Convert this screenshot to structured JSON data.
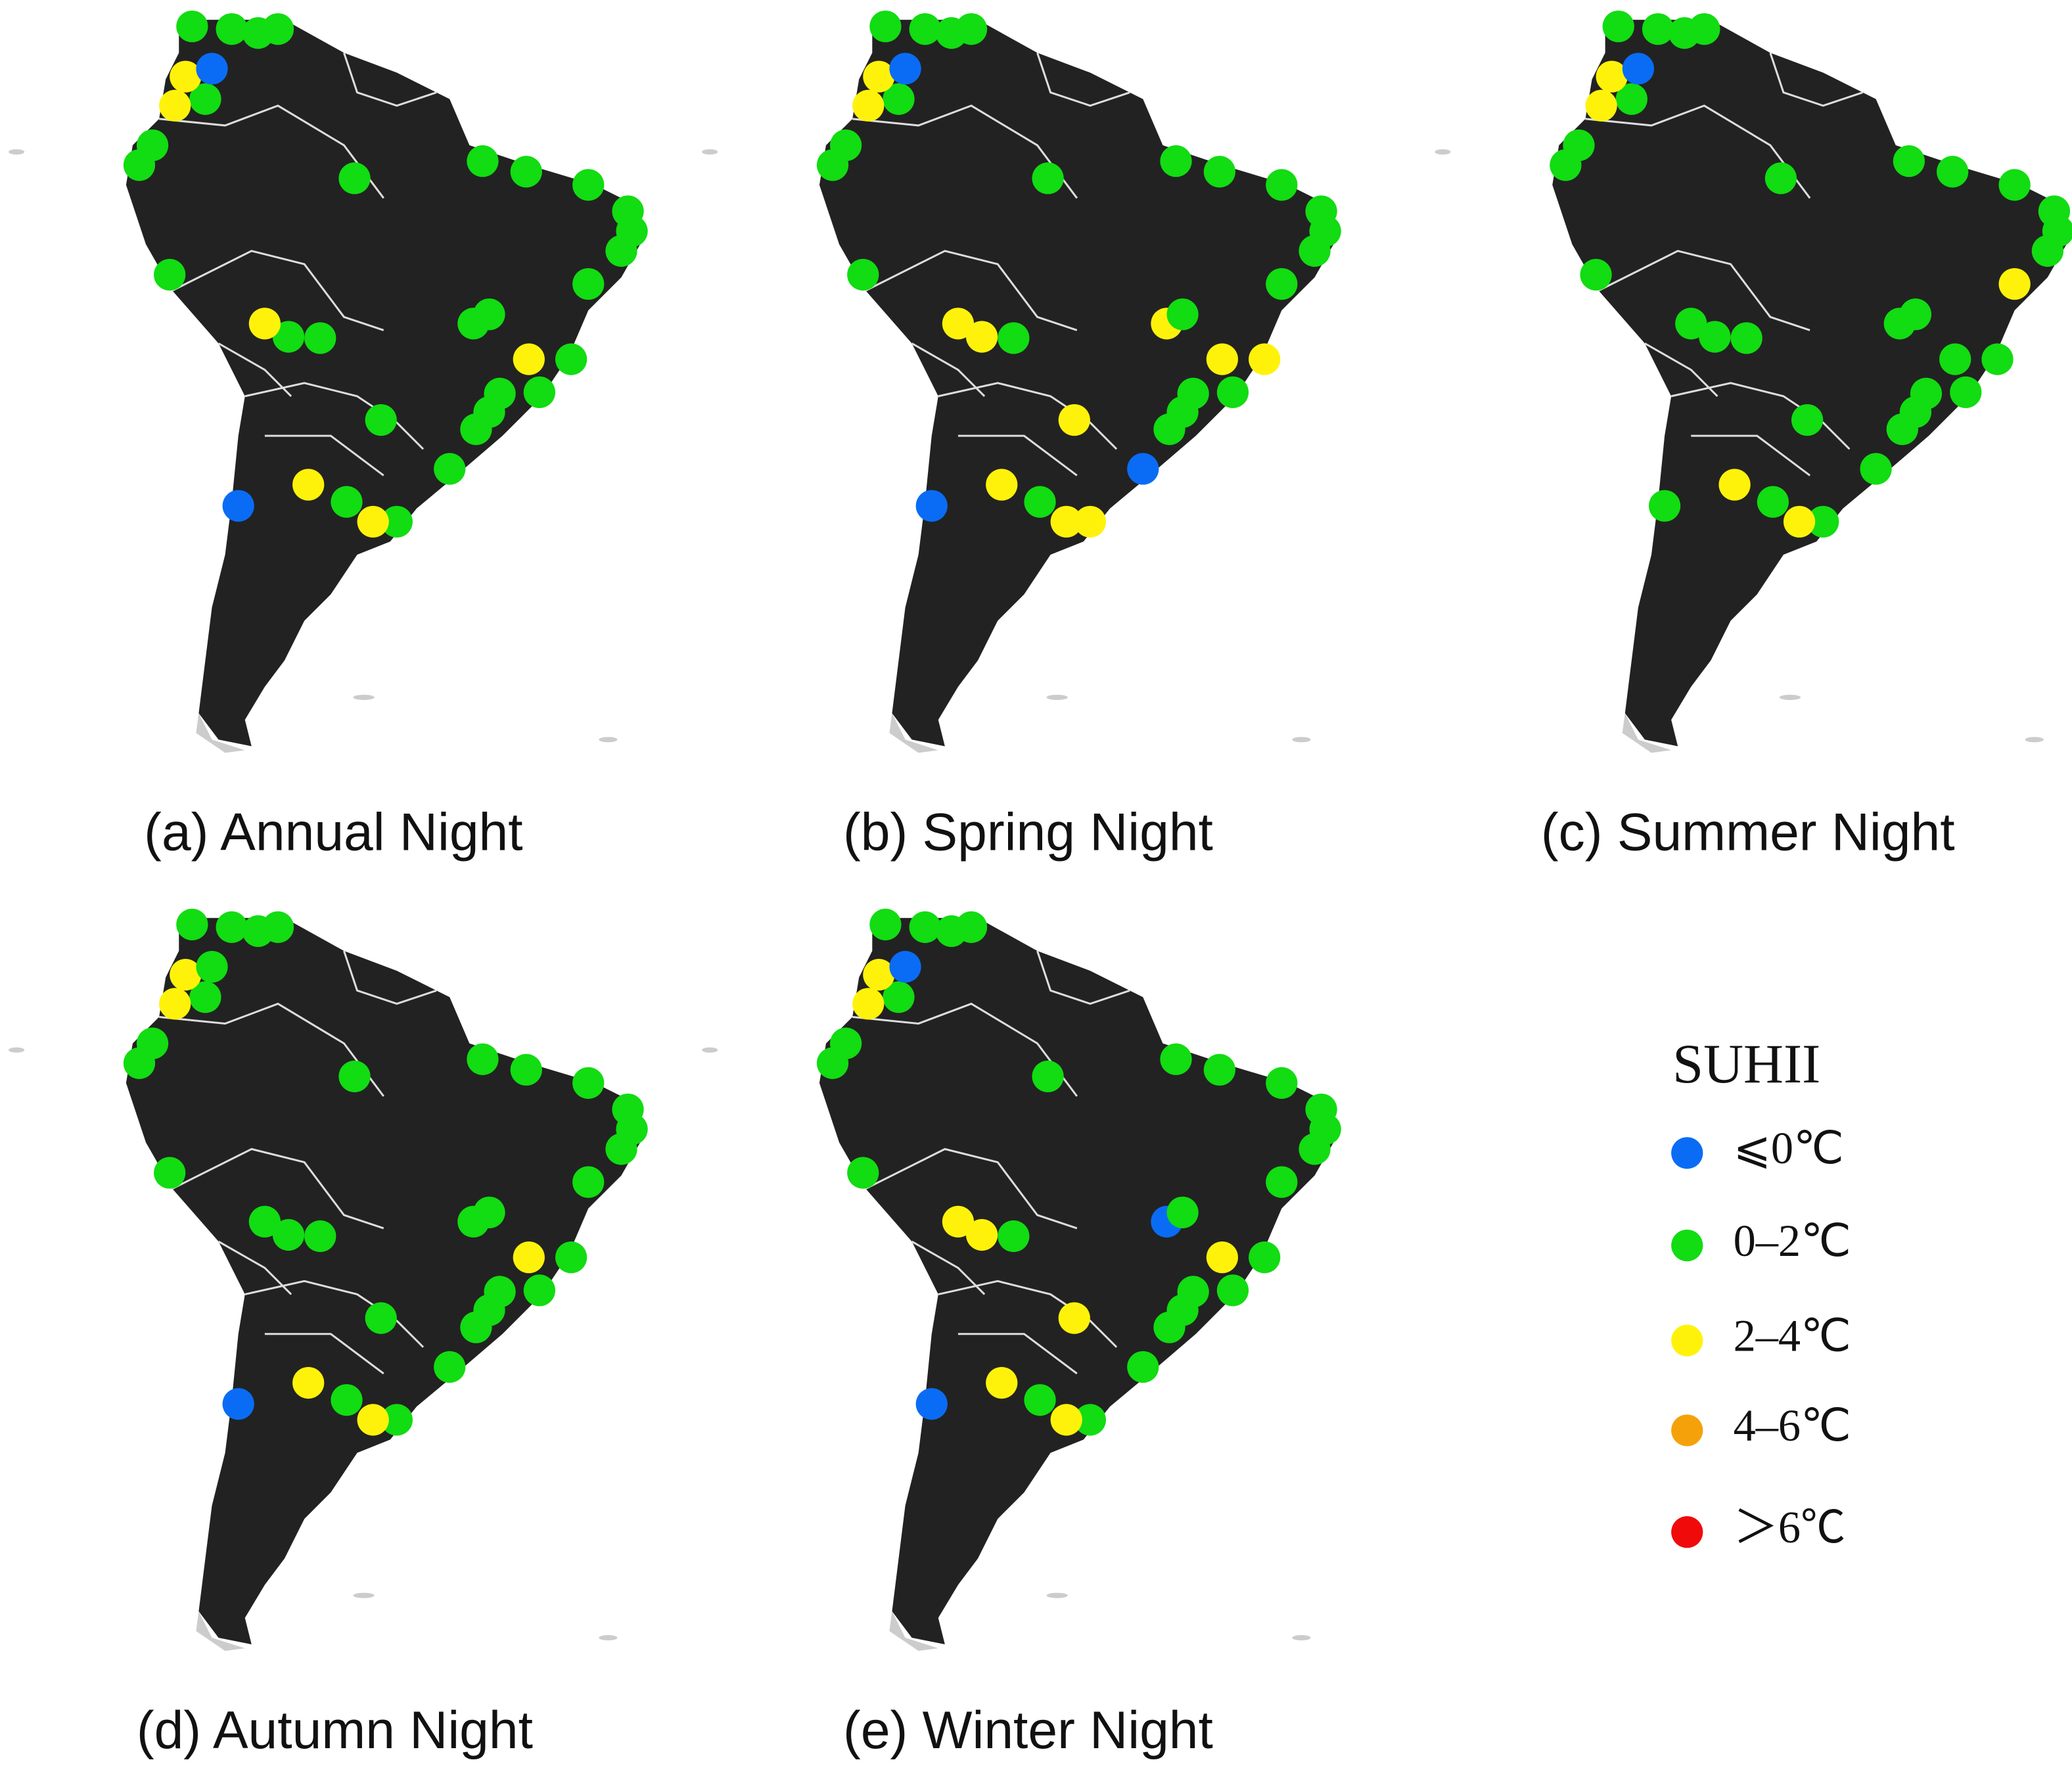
{
  "panels": [
    {
      "caption": "(a) Annual Night"
    },
    {
      "caption": "(b) Spring Night"
    },
    {
      "caption": "(c) Summer Night"
    },
    {
      "caption": "(d) Autumn Night"
    },
    {
      "caption": "(e) Winter Night"
    }
  ],
  "legend": {
    "title": "SUHII",
    "items": [
      {
        "label": "⩽0℃",
        "color": "#0a6cf5"
      },
      {
        "label": "0–2℃",
        "color": "#12dc12"
      },
      {
        "label": "2–4℃",
        "color": "#fff20a"
      },
      {
        "label": "4–6℃",
        "color": "#f5a20a"
      },
      {
        "label": "＞6℃",
        "color": "#f00a0a"
      }
    ]
  }
}
